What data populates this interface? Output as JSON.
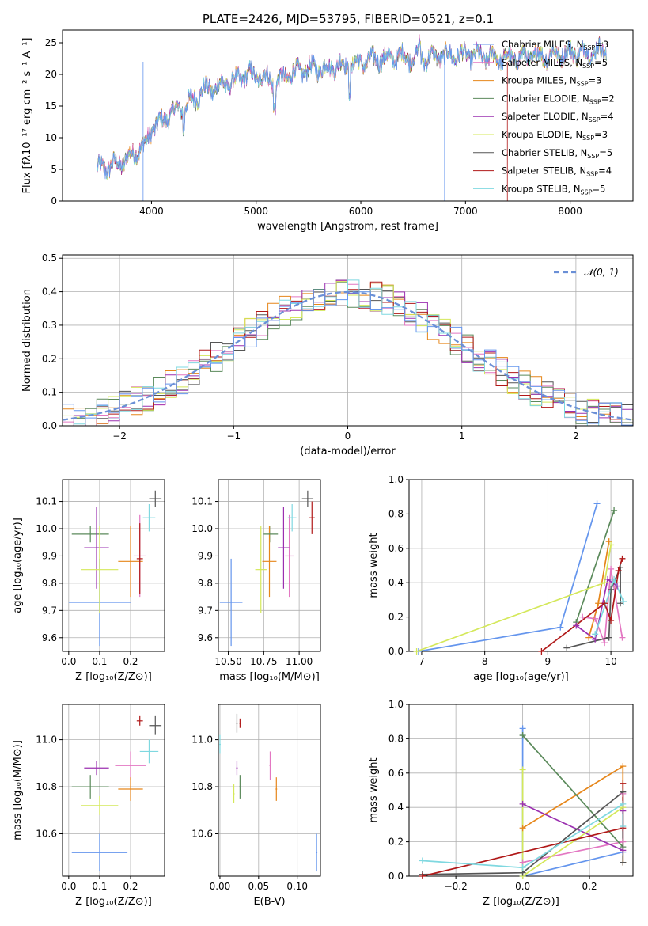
{
  "figure_title": "PLATE=2426, MJD=53795, FIBERID=0521, z=0.1",
  "models": [
    {
      "label": "Chabrier MILES, N",
      "nssp": "=3",
      "color": "#6495ed"
    },
    {
      "label": "Salpeter MILES, N",
      "nssp": "=5",
      "color": "#e377c2"
    },
    {
      "label": "Kroupa MILES, N",
      "nssp": "=3",
      "color": "#e6861a"
    },
    {
      "label": "Chabrier ELODIE, N",
      "nssp": "=2",
      "color": "#5b8a5b"
    },
    {
      "label": "Salpeter ELODIE, N",
      "nssp": "=4",
      "color": "#9b30b0"
    },
    {
      "label": "Kroupa ELODIE, N",
      "nssp": "=3",
      "color": "#d4e85a"
    },
    {
      "label": "Chabrier STELIB, N",
      "nssp": "=5",
      "color": "#555555"
    },
    {
      "label": "Salpeter STELIB, N",
      "nssp": "=4",
      "color": "#b01818"
    },
    {
      "label": "Kroupa STELIB, N",
      "nssp": "=5",
      "color": "#7fd8e0"
    }
  ],
  "nssp_sub": "SSP",
  "chart_data": [
    {
      "id": "spectrum",
      "type": "line",
      "xlabel": "wavelength [Angstrom, rest frame]",
      "ylabel": "Flux [fλ10⁻¹⁷ erg cm⁻² s⁻¹ A⁻¹]",
      "xlim": [
        3150,
        8600
      ],
      "ylim": [
        0,
        27
      ],
      "xticks": [
        4000,
        5000,
        6000,
        7000,
        8000
      ],
      "yticks": [
        0,
        5,
        10,
        15,
        20,
        25
      ],
      "continuum": [
        [
          3480,
          5.0
        ],
        [
          3600,
          5.5
        ],
        [
          3700,
          6.0
        ],
        [
          3800,
          7.0
        ],
        [
          3900,
          8.5
        ],
        [
          3950,
          9.0
        ],
        [
          4000,
          11.5
        ],
        [
          4100,
          12.5
        ],
        [
          4200,
          14.0
        ],
        [
          4300,
          14.8
        ],
        [
          4400,
          16.0
        ],
        [
          4500,
          17.5
        ],
        [
          4600,
          17.8
        ],
        [
          4700,
          18.5
        ],
        [
          4800,
          19.0
        ],
        [
          4900,
          20.0
        ],
        [
          5000,
          19.8
        ],
        [
          5100,
          19.5
        ],
        [
          5200,
          18.5
        ],
        [
          5300,
          20.0
        ],
        [
          5400,
          20.5
        ],
        [
          5500,
          20.8
        ],
        [
          5600,
          21.0
        ],
        [
          5700,
          21.0
        ],
        [
          5800,
          21.5
        ],
        [
          5900,
          21.2
        ],
        [
          6000,
          22.0
        ],
        [
          6200,
          22.5
        ],
        [
          6400,
          22.8
        ],
        [
          6600,
          22.5
        ],
        [
          6800,
          23.0
        ],
        [
          7000,
          23.0
        ],
        [
          7200,
          22.8
        ],
        [
          7400,
          22.5
        ],
        [
          7600,
          22.8
        ],
        [
          7800,
          23.0
        ],
        [
          8000,
          23.5
        ],
        [
          8200,
          23.5
        ],
        [
          8350,
          23.8
        ]
      ]
    },
    {
      "id": "residuals",
      "type": "histogram",
      "xlabel": "(data-model)/error",
      "ylabel": "Normed distribution",
      "xlim": [
        -2.5,
        2.5
      ],
      "ylim": [
        0,
        0.51
      ],
      "xticks": [
        -2,
        -1,
        0,
        1,
        2
      ],
      "yticks": [
        0.0,
        0.1,
        0.2,
        0.3,
        0.4,
        0.5
      ],
      "bin_width": 0.1,
      "reference_curve": {
        "label": "𝒩(0, 1)",
        "color": "#6a8fd6"
      }
    },
    {
      "id": "age_vs_Z",
      "type": "scatter",
      "xlabel": "Z [log₁₀(Z/Z⊙)]",
      "ylabel": "age  [log₁₀(age/yr)]",
      "xlim": [
        -0.02,
        0.31
      ],
      "ylim": [
        9.55,
        10.18
      ],
      "xticks": [
        0.0,
        0.1,
        0.2
      ],
      "yticks": [
        9.6,
        9.7,
        9.8,
        9.9,
        10.0,
        10.1
      ],
      "points": [
        {
          "m": 0,
          "x": 0.1,
          "y": 9.73,
          "ex": 0.1,
          "ey": 0.16
        },
        {
          "m": 1,
          "x": 0.23,
          "y": 9.9,
          "ex": 0.02,
          "ey": 0.15
        },
        {
          "m": 2,
          "x": 0.2,
          "y": 9.88,
          "ex": 0.04,
          "ey": 0.13
        },
        {
          "m": 3,
          "x": 0.07,
          "y": 9.98,
          "ex": 0.06,
          "ey": 0.03
        },
        {
          "m": 4,
          "x": 0.09,
          "y": 9.93,
          "ex": 0.04,
          "ey": 0.15
        },
        {
          "m": 5,
          "x": 0.1,
          "y": 9.85,
          "ex": 0.06,
          "ey": 0.16
        },
        {
          "m": 6,
          "x": 0.28,
          "y": 10.11,
          "ex": 0.02,
          "ey": 0.03
        },
        {
          "m": 7,
          "x": 0.23,
          "y": 9.89,
          "ex": 0.01,
          "ey": 0.13
        },
        {
          "m": 8,
          "x": 0.26,
          "y": 10.04,
          "ex": 0.02,
          "ey": 0.05
        }
      ]
    },
    {
      "id": "age_vs_mass",
      "type": "scatter",
      "xlabel": "mass [log₁₀(M/M⊙)]",
      "ylabel": "",
      "xlim": [
        10.43,
        11.15
      ],
      "ylim": [
        9.55,
        10.18
      ],
      "xticks": [
        10.5,
        10.75,
        11.0
      ],
      "yticks": [
        9.6,
        9.7,
        9.8,
        9.9,
        10.0,
        10.1
      ],
      "points": [
        {
          "m": 0,
          "x": 10.52,
          "y": 9.73,
          "ex": 0.08,
          "ey": 0.16
        },
        {
          "m": 1,
          "x": 10.93,
          "y": 9.9,
          "ex": 0.03,
          "ey": 0.15
        },
        {
          "m": 2,
          "x": 10.79,
          "y": 9.88,
          "ex": 0.05,
          "ey": 0.13
        },
        {
          "m": 3,
          "x": 10.8,
          "y": 9.98,
          "ex": 0.05,
          "ey": 0.03
        },
        {
          "m": 4,
          "x": 10.89,
          "y": 9.93,
          "ex": 0.04,
          "ey": 0.15
        },
        {
          "m": 5,
          "x": 10.73,
          "y": 9.85,
          "ex": 0.04,
          "ey": 0.16
        },
        {
          "m": 6,
          "x": 11.06,
          "y": 10.11,
          "ex": 0.04,
          "ey": 0.03
        },
        {
          "m": 7,
          "x": 11.09,
          "y": 10.04,
          "ex": 0.02,
          "ey": 0.06
        },
        {
          "m": 8,
          "x": 10.95,
          "y": 10.04,
          "ex": 0.03,
          "ey": 0.05
        }
      ]
    },
    {
      "id": "weight_vs_age",
      "type": "line",
      "xlabel": "age  [log₁₀(age/yr)]",
      "ylabel": "mass weight",
      "xlim": [
        6.8,
        10.35
      ],
      "ylim": [
        0,
        1.0
      ],
      "xticks": [
        7,
        8,
        9,
        10
      ],
      "yticks": [
        0.0,
        0.2,
        0.4,
        0.6,
        0.8,
        1.0
      ],
      "series": [
        {
          "m": 0,
          "x": [
            6.95,
            9.2,
            9.78
          ],
          "y": [
            0.0,
            0.14,
            0.86
          ]
        },
        {
          "m": 1,
          "x": [
            9.55,
            9.75,
            9.9,
            10.0,
            10.18
          ],
          "y": [
            0.2,
            0.19,
            0.05,
            0.48,
            0.08
          ]
        },
        {
          "m": 2,
          "x": [
            9.65,
            9.8,
            9.97
          ],
          "y": [
            0.08,
            0.28,
            0.64
          ]
        },
        {
          "m": 3,
          "x": [
            9.45,
            10.05
          ],
          "y": [
            0.17,
            0.82
          ]
        },
        {
          "m": 4,
          "x": [
            9.45,
            9.75,
            9.95,
            10.1
          ],
          "y": [
            0.15,
            0.07,
            0.42,
            0.38
          ]
        },
        {
          "m": 5,
          "x": [
            6.92,
            9.9,
            10.0
          ],
          "y": [
            0.0,
            0.4,
            0.62
          ]
        },
        {
          "m": 6,
          "x": [
            9.3,
            9.97,
            10.0,
            10.15,
            10.15
          ],
          "y": [
            0.02,
            0.08,
            0.36,
            0.49,
            0.28
          ]
        },
        {
          "m": 7,
          "x": [
            8.9,
            9.9,
            10.0,
            10.12,
            10.18
          ],
          "y": [
            0.0,
            0.28,
            0.18,
            0.47,
            0.54
          ]
        },
        {
          "m": 8,
          "x": [
            9.75,
            10.05,
            10.2
          ],
          "y": [
            0.1,
            0.42,
            0.29
          ]
        }
      ]
    },
    {
      "id": "mass_vs_Z",
      "type": "scatter",
      "xlabel": "Z [log₁₀(Z/Z⊙)]",
      "ylabel": "mass [log₁₀(M/M⊙)]",
      "xlim": [
        -0.02,
        0.31
      ],
      "ylim": [
        10.42,
        11.15
      ],
      "xticks": [
        0.0,
        0.1,
        0.2
      ],
      "yticks": [
        10.6,
        10.8,
        11.0
      ],
      "points": [
        {
          "m": 0,
          "x": 0.1,
          "y": 10.52,
          "ex": 0.09,
          "ey": 0.08
        },
        {
          "m": 1,
          "x": 0.2,
          "y": 10.89,
          "ex": 0.05,
          "ey": 0.06
        },
        {
          "m": 2,
          "x": 0.2,
          "y": 10.79,
          "ex": 0.04,
          "ey": 0.05
        },
        {
          "m": 3,
          "x": 0.07,
          "y": 10.8,
          "ex": 0.06,
          "ey": 0.05
        },
        {
          "m": 4,
          "x": 0.09,
          "y": 10.88,
          "ex": 0.04,
          "ey": 0.03
        },
        {
          "m": 5,
          "x": 0.1,
          "y": 10.72,
          "ex": 0.06,
          "ey": 0.04
        },
        {
          "m": 6,
          "x": 0.28,
          "y": 11.06,
          "ex": 0.02,
          "ey": 0.04
        },
        {
          "m": 7,
          "x": 0.23,
          "y": 11.08,
          "ex": 0.01,
          "ey": 0.02
        },
        {
          "m": 8,
          "x": 0.26,
          "y": 10.95,
          "ex": 0.03,
          "ey": 0.05
        }
      ]
    },
    {
      "id": "mass_vs_EBV",
      "type": "scatter",
      "xlabel": "E(B-V)",
      "ylabel": "",
      "xlim": [
        -0.002,
        0.13
      ],
      "ylim": [
        10.42,
        11.15
      ],
      "xticks": [
        0.0,
        0.05,
        0.1
      ],
      "yticks": [
        10.6,
        10.8,
        11.0
      ],
      "points": [
        {
          "m": 0,
          "x": 0.125,
          "y": 10.52,
          "ex": 0.001,
          "ey": 0.08
        },
        {
          "m": 1,
          "x": 0.065,
          "y": 10.89,
          "ex": 0.001,
          "ey": 0.06
        },
        {
          "m": 2,
          "x": 0.073,
          "y": 10.79,
          "ex": 0.001,
          "ey": 0.05
        },
        {
          "m": 3,
          "x": 0.026,
          "y": 10.8,
          "ex": 0.001,
          "ey": 0.05
        },
        {
          "m": 4,
          "x": 0.022,
          "y": 10.88,
          "ex": 0.001,
          "ey": 0.03
        },
        {
          "m": 5,
          "x": 0.018,
          "y": 10.77,
          "ex": 0.001,
          "ey": 0.04
        },
        {
          "m": 6,
          "x": 0.022,
          "y": 11.07,
          "ex": 0.001,
          "ey": 0.04
        },
        {
          "m": 7,
          "x": 0.026,
          "y": 11.07,
          "ex": 0.001,
          "ey": 0.02
        },
        {
          "m": 8,
          "x": 0.0,
          "y": 10.98,
          "ex": 0.001,
          "ey": 0.04
        }
      ]
    },
    {
      "id": "weight_vs_Z",
      "type": "line",
      "xlabel": "Z [log₁₀(Z/Z⊙)]",
      "ylabel": "mass weight",
      "xlim": [
        -0.34,
        0.33
      ],
      "ylim": [
        0,
        1.0
      ],
      "xticks": [
        -0.2,
        0.0,
        0.2
      ],
      "yticks": [
        0.0,
        0.2,
        0.4,
        0.6,
        0.8,
        1.0
      ],
      "series": [
        {
          "m": 0,
          "x": [
            0.0,
            0.0,
            0.3
          ],
          "y": [
            0.86,
            0.0,
            0.14
          ]
        },
        {
          "m": 1,
          "x": [
            0.0,
            0.3,
            0.3
          ],
          "y": [
            0.08,
            0.2,
            0.48
          ]
        },
        {
          "m": 2,
          "x": [
            0.0,
            0.3,
            0.3
          ],
          "y": [
            0.28,
            0.64,
            0.08
          ]
        },
        {
          "m": 3,
          "x": [
            0.0,
            0.3
          ],
          "y": [
            0.82,
            0.17
          ]
        },
        {
          "m": 4,
          "x": [
            0.0,
            0.3,
            0.3
          ],
          "y": [
            0.42,
            0.15,
            0.38
          ]
        },
        {
          "m": 5,
          "x": [
            0.0,
            0.0,
            0.3
          ],
          "y": [
            0.62,
            0.0,
            0.4
          ]
        },
        {
          "m": 6,
          "x": [
            -0.3,
            0.0,
            0.3,
            0.3
          ],
          "y": [
            0.01,
            0.02,
            0.49,
            0.08
          ]
        },
        {
          "m": 7,
          "x": [
            -0.3,
            0.3,
            0.3
          ],
          "y": [
            0.0,
            0.28,
            0.54
          ]
        },
        {
          "m": 8,
          "x": [
            -0.3,
            0.0,
            0.3,
            0.3
          ],
          "y": [
            0.09,
            0.05,
            0.42,
            0.29
          ]
        }
      ]
    }
  ]
}
